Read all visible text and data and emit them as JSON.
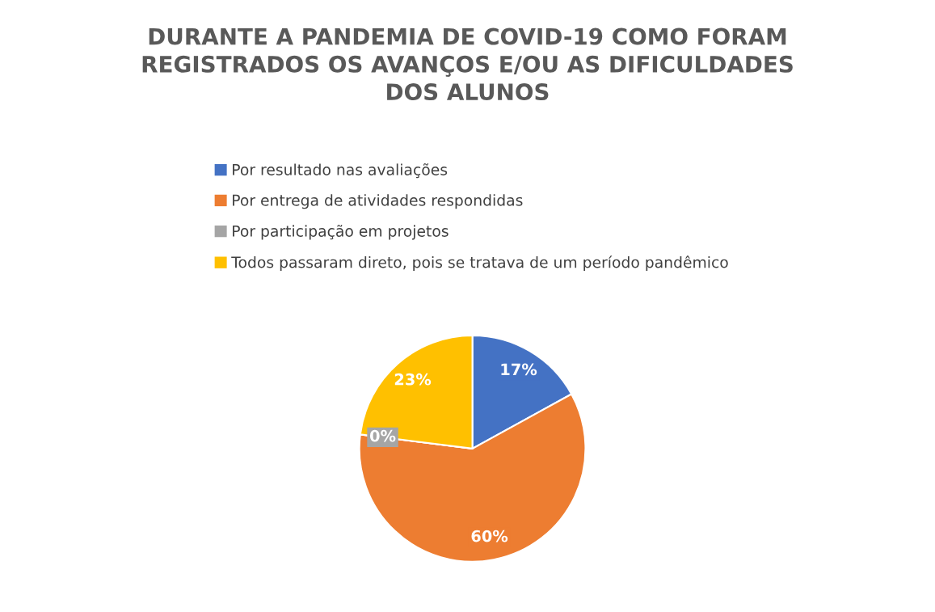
{
  "chart_data": {
    "type": "pie",
    "title": "DURANTE A PANDEMIA DE COVID-19 COMO FORAM\nREGISTRADOS OS AVANÇOS E/OU AS DIFICULDADES\nDOS ALUNOS",
    "categories": [
      "Por resultado nas avaliações",
      "Por entrega de atividades respondidas",
      "Por participação em projetos",
      "Todos passaram direto, pois se tratava de um período pandêmico"
    ],
    "values": [
      17,
      60,
      0,
      23
    ],
    "colors": [
      "#4472c4",
      "#ed7d31",
      "#a5a5a5",
      "#ffc000"
    ],
    "value_labels": [
      "17%",
      "60%",
      "0%",
      "23%"
    ],
    "legend": "top"
  }
}
